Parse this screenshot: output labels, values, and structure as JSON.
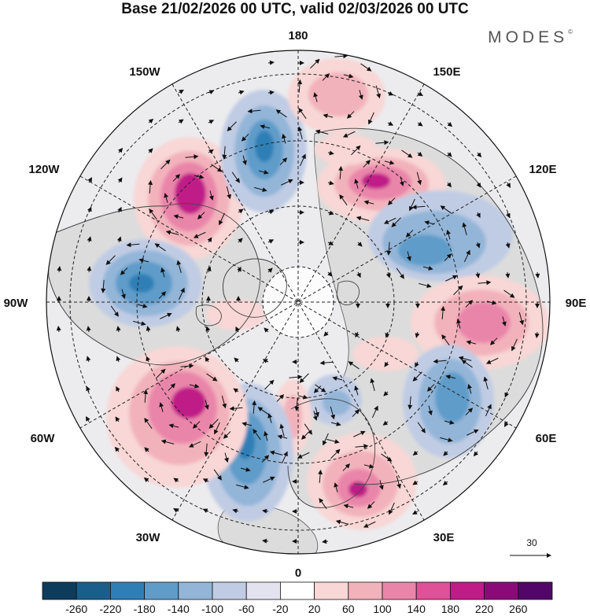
{
  "header": {
    "title": "Base 21/02/2026 00 UTC, valid 02/03/2026 00 UTC",
    "brand": "MODES",
    "brand_mark": "©"
  },
  "map": {
    "projection": "polar stereographic (north)",
    "labels": {
      "top": "180",
      "bottom": "0",
      "left": "90W",
      "right": "90E",
      "upper_left_outer": "150W",
      "upper_left": "120W",
      "upper_right_outer": "150E",
      "upper_right": "120E",
      "lower_left": "60W",
      "lower_left_outer": "30W",
      "lower_right": "60E",
      "lower_right_outer": "30E"
    },
    "vector_reference": "30",
    "anomaly_centers": [
      {
        "name": "positive-center-120w",
        "sign": "positive",
        "strength": "high"
      },
      {
        "name": "negative-center-170w",
        "sign": "negative",
        "strength": "high"
      },
      {
        "name": "positive-center-170e",
        "sign": "positive",
        "strength": "low"
      },
      {
        "name": "positive-center-140e",
        "sign": "positive",
        "strength": "high"
      },
      {
        "name": "negative-center-110e",
        "sign": "negative",
        "strength": "mid"
      },
      {
        "name": "positive-center-80e",
        "sign": "positive",
        "strength": "mid"
      },
      {
        "name": "negative-center-60e",
        "sign": "negative",
        "strength": "mid"
      },
      {
        "name": "positive-center-25e",
        "sign": "positive",
        "strength": "high"
      },
      {
        "name": "negative-center-10e",
        "sign": "negative",
        "strength": "low"
      },
      {
        "name": "positive-center-5w",
        "sign": "positive",
        "strength": "low"
      },
      {
        "name": "negative-center-30w",
        "sign": "negative",
        "strength": "high"
      },
      {
        "name": "positive-center-50w",
        "sign": "positive",
        "strength": "high"
      },
      {
        "name": "negative-center-85w",
        "sign": "negative",
        "strength": "high"
      }
    ]
  },
  "colorbar": {
    "ticks": [
      "-260",
      "-220",
      "-180",
      "-140",
      "-100",
      "-60",
      "-20",
      "20",
      "60",
      "100",
      "140",
      "180",
      "220",
      "260"
    ],
    "colors": [
      "#0d3b5c",
      "#1a5f8c",
      "#2f7fb6",
      "#5f9cc9",
      "#93b5d8",
      "#c0cce4",
      "#e3e3f0",
      "#ffffff",
      "#f8d7d6",
      "#f2b2bb",
      "#ea85aa",
      "#df5198",
      "#c01b87",
      "#8b0a7a",
      "#52066a"
    ]
  }
}
